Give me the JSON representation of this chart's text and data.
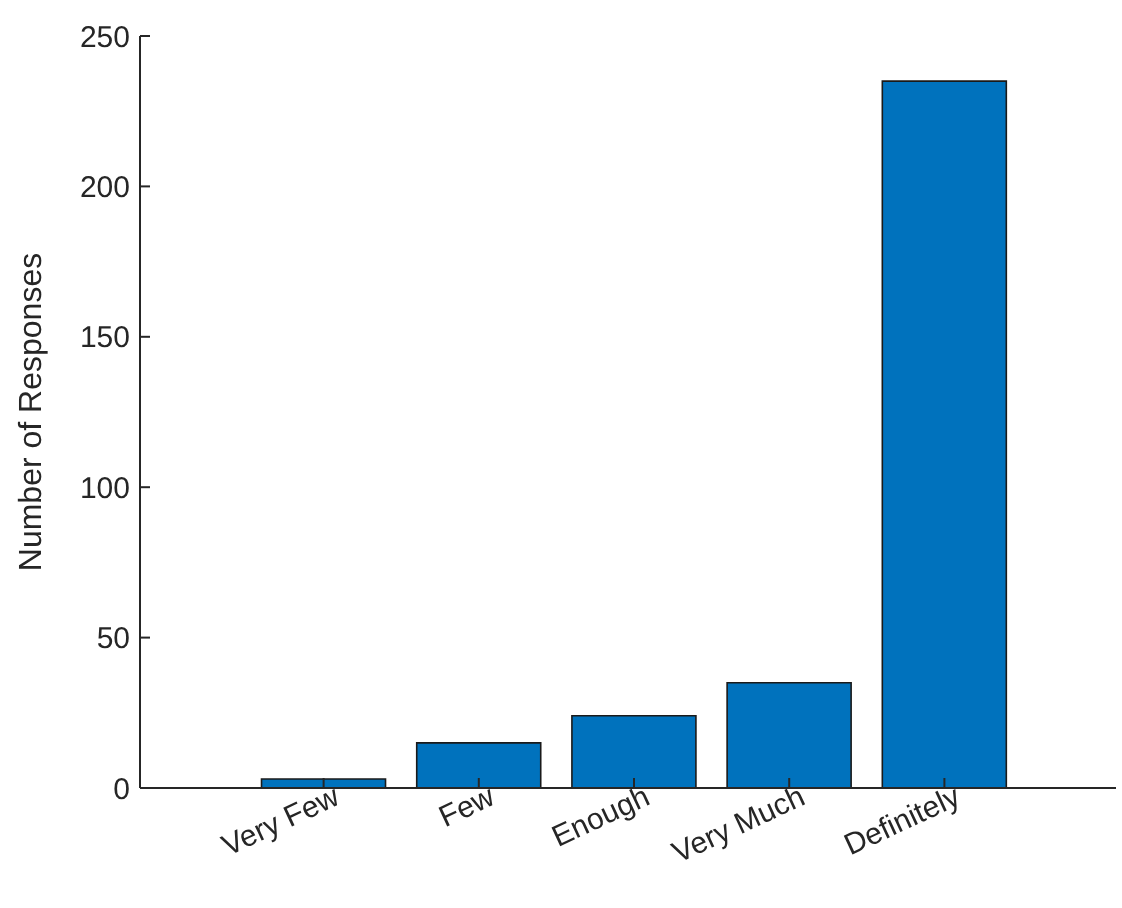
{
  "chart_data": {
    "type": "bar",
    "ylabel": "Number of Responses",
    "categories": [
      "Very Few",
      "Few",
      "Enough",
      "Very Much",
      "Definitely"
    ],
    "values": [
      3,
      15,
      24,
      35,
      235
    ],
    "color": "#0072bd",
    "ylim": [
      0,
      250
    ],
    "yticks": [
      0,
      50,
      100,
      150,
      200,
      250
    ],
    "grid": false,
    "legend": false
  }
}
